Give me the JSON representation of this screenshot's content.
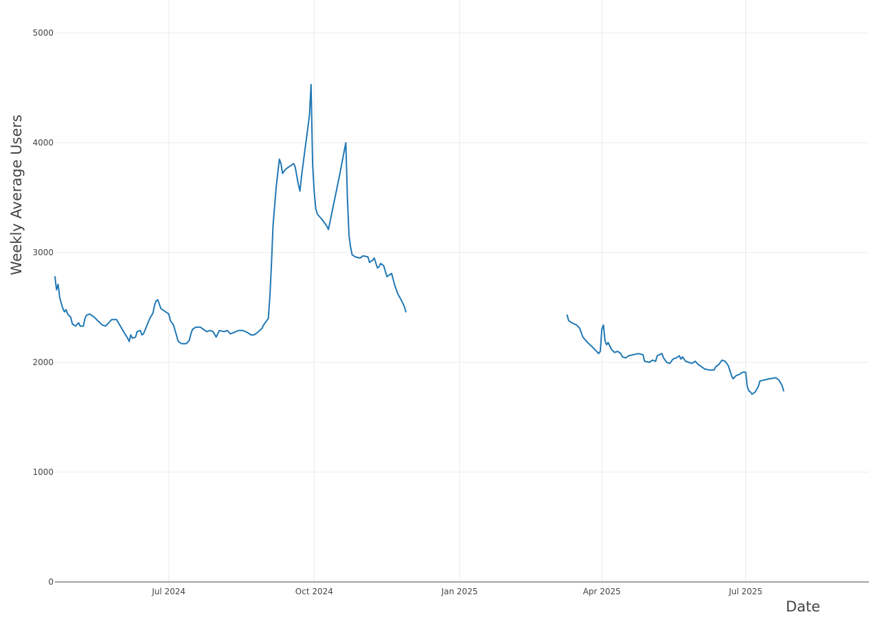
{
  "chart_data": {
    "type": "line",
    "title": "",
    "xlabel": "Date",
    "ylabel": "Weekly Average Users",
    "x_type": "date",
    "xlim": [
      "2024-04-20",
      "2025-09-17"
    ],
    "ylim": [
      0,
      5300
    ],
    "x_ticks": [
      {
        "value": "2024-07-01",
        "label": "Jul 2024"
      },
      {
        "value": "2024-10-01",
        "label": "Oct 2024"
      },
      {
        "value": "2025-01-01",
        "label": "Jan 2025"
      },
      {
        "value": "2025-04-01",
        "label": "Apr 2025"
      },
      {
        "value": "2025-07-01",
        "label": "Jul 2025"
      }
    ],
    "y_ticks": [
      {
        "value": 0,
        "label": "0"
      },
      {
        "value": 1000,
        "label": "1000"
      },
      {
        "value": 2000,
        "label": "2000"
      },
      {
        "value": 3000,
        "label": "3000"
      },
      {
        "value": 4000,
        "label": "4000"
      },
      {
        "value": 5000,
        "label": "5000"
      }
    ],
    "grid": true,
    "legend": "none",
    "line_color": "#1f77b4",
    "series": [
      {
        "segments": [
          [
            [
              "2024-04-20",
              2780
            ],
            [
              "2024-04-21",
              2660
            ],
            [
              "2024-04-22",
              2710
            ],
            [
              "2024-04-23",
              2590
            ],
            [
              "2024-04-25",
              2490
            ],
            [
              "2024-04-26",
              2460
            ],
            [
              "2024-04-27",
              2480
            ],
            [
              "2024-04-28",
              2440
            ],
            [
              "2024-04-30",
              2410
            ],
            [
              "2024-05-01",
              2350
            ],
            [
              "2024-05-03",
              2330
            ],
            [
              "2024-05-05",
              2360
            ],
            [
              "2024-05-06",
              2330
            ],
            [
              "2024-05-08",
              2330
            ],
            [
              "2024-05-09",
              2400
            ],
            [
              "2024-05-10",
              2430
            ],
            [
              "2024-05-12",
              2440
            ],
            [
              "2024-05-15",
              2410
            ],
            [
              "2024-05-17",
              2380
            ],
            [
              "2024-05-20",
              2340
            ],
            [
              "2024-05-22",
              2330
            ],
            [
              "2024-05-24",
              2360
            ],
            [
              "2024-05-26",
              2390
            ],
            [
              "2024-05-29",
              2390
            ],
            [
              "2024-05-31",
              2340
            ],
            [
              "2024-06-02",
              2290
            ],
            [
              "2024-06-05",
              2220
            ],
            [
              "2024-06-06",
              2190
            ],
            [
              "2024-06-07",
              2250
            ],
            [
              "2024-06-08",
              2220
            ],
            [
              "2024-06-10",
              2230
            ],
            [
              "2024-06-11",
              2280
            ],
            [
              "2024-06-13",
              2290
            ],
            [
              "2024-06-14",
              2250
            ],
            [
              "2024-06-15",
              2260
            ],
            [
              "2024-06-17",
              2330
            ],
            [
              "2024-06-19",
              2400
            ],
            [
              "2024-06-21",
              2450
            ],
            [
              "2024-06-22",
              2520
            ],
            [
              "2024-06-23",
              2560
            ],
            [
              "2024-06-24",
              2570
            ],
            [
              "2024-06-25",
              2530
            ],
            [
              "2024-06-26",
              2490
            ],
            [
              "2024-06-28",
              2470
            ],
            [
              "2024-07-01",
              2440
            ],
            [
              "2024-07-02",
              2380
            ],
            [
              "2024-07-04",
              2340
            ],
            [
              "2024-07-06",
              2240
            ],
            [
              "2024-07-07",
              2190
            ],
            [
              "2024-07-09",
              2170
            ],
            [
              "2024-07-12",
              2170
            ],
            [
              "2024-07-14",
              2200
            ],
            [
              "2024-07-15",
              2260
            ],
            [
              "2024-07-16",
              2300
            ],
            [
              "2024-07-18",
              2320
            ],
            [
              "2024-07-21",
              2320
            ],
            [
              "2024-07-23",
              2300
            ],
            [
              "2024-07-25",
              2280
            ],
            [
              "2024-07-27",
              2290
            ],
            [
              "2024-07-29",
              2280
            ],
            [
              "2024-07-31",
              2230
            ],
            [
              "2024-08-02",
              2290
            ],
            [
              "2024-08-05",
              2280
            ],
            [
              "2024-08-07",
              2290
            ],
            [
              "2024-08-09",
              2260
            ],
            [
              "2024-08-11",
              2270
            ],
            [
              "2024-08-14",
              2290
            ],
            [
              "2024-08-17",
              2290
            ],
            [
              "2024-08-20",
              2270
            ],
            [
              "2024-08-22",
              2250
            ],
            [
              "2024-08-24",
              2250
            ],
            [
              "2024-08-26",
              2270
            ],
            [
              "2024-08-29",
              2310
            ],
            [
              "2024-08-30",
              2340
            ],
            [
              "2024-09-01",
              2380
            ],
            [
              "2024-09-02",
              2400
            ],
            [
              "2024-09-03",
              2600
            ],
            [
              "2024-09-04",
              2900
            ],
            [
              "2024-09-05",
              3250
            ],
            [
              "2024-09-07",
              3600
            ],
            [
              "2024-09-09",
              3850
            ],
            [
              "2024-09-10",
              3810
            ],
            [
              "2024-09-11",
              3720
            ],
            [
              "2024-09-12",
              3740
            ],
            [
              "2024-09-13",
              3760
            ],
            [
              "2024-09-15",
              3780
            ],
            [
              "2024-09-18",
              3810
            ],
            [
              "2024-09-19",
              3780
            ],
            [
              "2024-09-21",
              3620
            ],
            [
              "2024-09-22",
              3560
            ],
            [
              "2024-09-23",
              3700
            ],
            [
              "2024-09-28",
              4250
            ],
            [
              "2024-09-29",
              4530
            ],
            [
              "2024-09-30",
              3800
            ],
            [
              "2024-10-01",
              3550
            ],
            [
              "2024-10-02",
              3400
            ],
            [
              "2024-10-03",
              3350
            ],
            [
              "2024-10-06",
              3300
            ],
            [
              "2024-10-09",
              3240
            ],
            [
              "2024-10-10",
              3210
            ],
            [
              "2024-10-17",
              3700
            ],
            [
              "2024-10-21",
              4000
            ],
            [
              "2024-10-22",
              3500
            ],
            [
              "2024-10-23",
              3160
            ],
            [
              "2024-10-24",
              3050
            ],
            [
              "2024-10-25",
              2980
            ],
            [
              "2024-10-27",
              2960
            ],
            [
              "2024-10-30",
              2950
            ],
            [
              "2024-11-01",
              2970
            ],
            [
              "2024-11-04",
              2960
            ],
            [
              "2024-11-05",
              2910
            ],
            [
              "2024-11-07",
              2930
            ],
            [
              "2024-11-08",
              2950
            ],
            [
              "2024-11-10",
              2860
            ],
            [
              "2024-11-11",
              2870
            ],
            [
              "2024-11-12",
              2900
            ],
            [
              "2024-11-14",
              2880
            ],
            [
              "2024-11-16",
              2780
            ],
            [
              "2024-11-18",
              2800
            ],
            [
              "2024-11-19",
              2810
            ],
            [
              "2024-11-21",
              2700
            ],
            [
              "2024-11-23",
              2620
            ],
            [
              "2024-11-25",
              2570
            ],
            [
              "2024-11-27",
              2510
            ],
            [
              "2024-11-28",
              2460
            ]
          ],
          [
            [
              "2025-03-10",
              2430
            ],
            [
              "2025-03-11",
              2380
            ],
            [
              "2025-03-13",
              2360
            ],
            [
              "2025-03-16",
              2340
            ],
            [
              "2025-03-18",
              2310
            ],
            [
              "2025-03-20",
              2230
            ],
            [
              "2025-03-23",
              2180
            ],
            [
              "2025-03-26",
              2140
            ],
            [
              "2025-03-28",
              2110
            ],
            [
              "2025-03-30",
              2080
            ],
            [
              "2025-03-31",
              2100
            ],
            [
              "2025-04-01",
              2300
            ],
            [
              "2025-04-02",
              2340
            ],
            [
              "2025-04-03",
              2200
            ],
            [
              "2025-04-04",
              2160
            ],
            [
              "2025-04-05",
              2180
            ],
            [
              "2025-04-07",
              2120
            ],
            [
              "2025-04-09",
              2090
            ],
            [
              "2025-04-11",
              2100
            ],
            [
              "2025-04-13",
              2080
            ],
            [
              "2025-04-14",
              2050
            ],
            [
              "2025-04-16",
              2040
            ],
            [
              "2025-04-18",
              2060
            ],
            [
              "2025-04-21",
              2070
            ],
            [
              "2025-04-24",
              2080
            ],
            [
              "2025-04-27",
              2070
            ],
            [
              "2025-04-28",
              2010
            ],
            [
              "2025-05-01",
              2000
            ],
            [
              "2025-05-03",
              2020
            ],
            [
              "2025-05-05",
              2010
            ],
            [
              "2025-05-06",
              2060
            ],
            [
              "2025-05-09",
              2080
            ],
            [
              "2025-05-10",
              2040
            ],
            [
              "2025-05-12",
              2000
            ],
            [
              "2025-05-14",
              1990
            ],
            [
              "2025-05-16",
              2030
            ],
            [
              "2025-05-18",
              2040
            ],
            [
              "2025-05-20",
              2060
            ],
            [
              "2025-05-21",
              2030
            ],
            [
              "2025-05-22",
              2050
            ],
            [
              "2025-05-24",
              2010
            ],
            [
              "2025-05-26",
              2000
            ],
            [
              "2025-05-28",
              1990
            ],
            [
              "2025-05-30",
              2010
            ],
            [
              "2025-06-01",
              1980
            ],
            [
              "2025-06-03",
              1960
            ],
            [
              "2025-06-05",
              1940
            ],
            [
              "2025-06-08",
              1930
            ],
            [
              "2025-06-11",
              1930
            ],
            [
              "2025-06-12",
              1960
            ],
            [
              "2025-06-14",
              1980
            ],
            [
              "2025-06-16",
              2020
            ],
            [
              "2025-06-18",
              2010
            ],
            [
              "2025-06-20",
              1970
            ],
            [
              "2025-06-22",
              1880
            ],
            [
              "2025-06-23",
              1850
            ],
            [
              "2025-06-25",
              1880
            ],
            [
              "2025-06-27",
              1890
            ],
            [
              "2025-06-29",
              1910
            ],
            [
              "2025-07-01",
              1910
            ],
            [
              "2025-07-02",
              1780
            ],
            [
              "2025-07-03",
              1740
            ],
            [
              "2025-07-04",
              1730
            ],
            [
              "2025-07-05",
              1710
            ],
            [
              "2025-07-07",
              1730
            ],
            [
              "2025-07-09",
              1780
            ],
            [
              "2025-07-10",
              1830
            ],
            [
              "2025-07-13",
              1840
            ],
            [
              "2025-07-16",
              1850
            ],
            [
              "2025-07-20",
              1860
            ],
            [
              "2025-07-22",
              1840
            ],
            [
              "2025-07-24",
              1790
            ],
            [
              "2025-07-25",
              1740
            ]
          ]
        ]
      }
    ]
  }
}
